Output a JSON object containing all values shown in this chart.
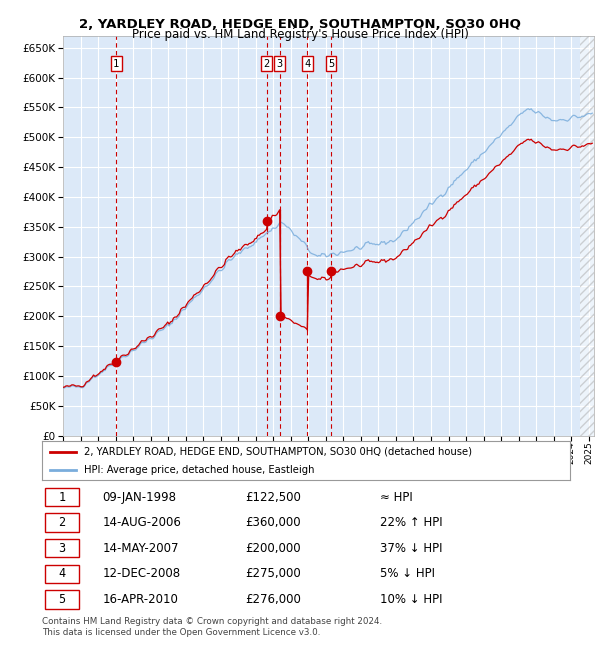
{
  "title": "2, YARDLEY ROAD, HEDGE END, SOUTHAMPTON, SO30 0HQ",
  "subtitle": "Price paid vs. HM Land Registry's House Price Index (HPI)",
  "xlim": [
    1995.0,
    2025.3
  ],
  "ylim": [
    0,
    670000
  ],
  "yticks": [
    0,
    50000,
    100000,
    150000,
    200000,
    250000,
    300000,
    350000,
    400000,
    450000,
    500000,
    550000,
    600000,
    650000
  ],
  "background_color": "#dce9f8",
  "grid_color": "#ffffff",
  "sale_color": "#cc0000",
  "hpi_color": "#7aaddc",
  "transaction_dates_num": [
    1998.03,
    2006.62,
    2007.37,
    2008.95,
    2010.29
  ],
  "transaction_prices": [
    122500,
    360000,
    200000,
    275000,
    276000
  ],
  "transaction_labels": [
    "1",
    "2",
    "3",
    "4",
    "5"
  ],
  "legend_line1": "2, YARDLEY ROAD, HEDGE END, SOUTHAMPTON, SO30 0HQ (detached house)",
  "legend_line2": "HPI: Average price, detached house, Eastleigh",
  "table_data": [
    [
      "1",
      "09-JAN-1998",
      "£122,500",
      "≈ HPI"
    ],
    [
      "2",
      "14-AUG-2006",
      "£360,000",
      "22% ↑ HPI"
    ],
    [
      "3",
      "14-MAY-2007",
      "£200,000",
      "37% ↓ HPI"
    ],
    [
      "4",
      "12-DEC-2008",
      "£275,000",
      "5% ↓ HPI"
    ],
    [
      "5",
      "16-APR-2010",
      "£276,000",
      "10% ↓ HPI"
    ]
  ],
  "footer": [
    "Contains HM Land Registry data © Crown copyright and database right 2024.",
    "This data is licensed under the Open Government Licence v3.0."
  ]
}
